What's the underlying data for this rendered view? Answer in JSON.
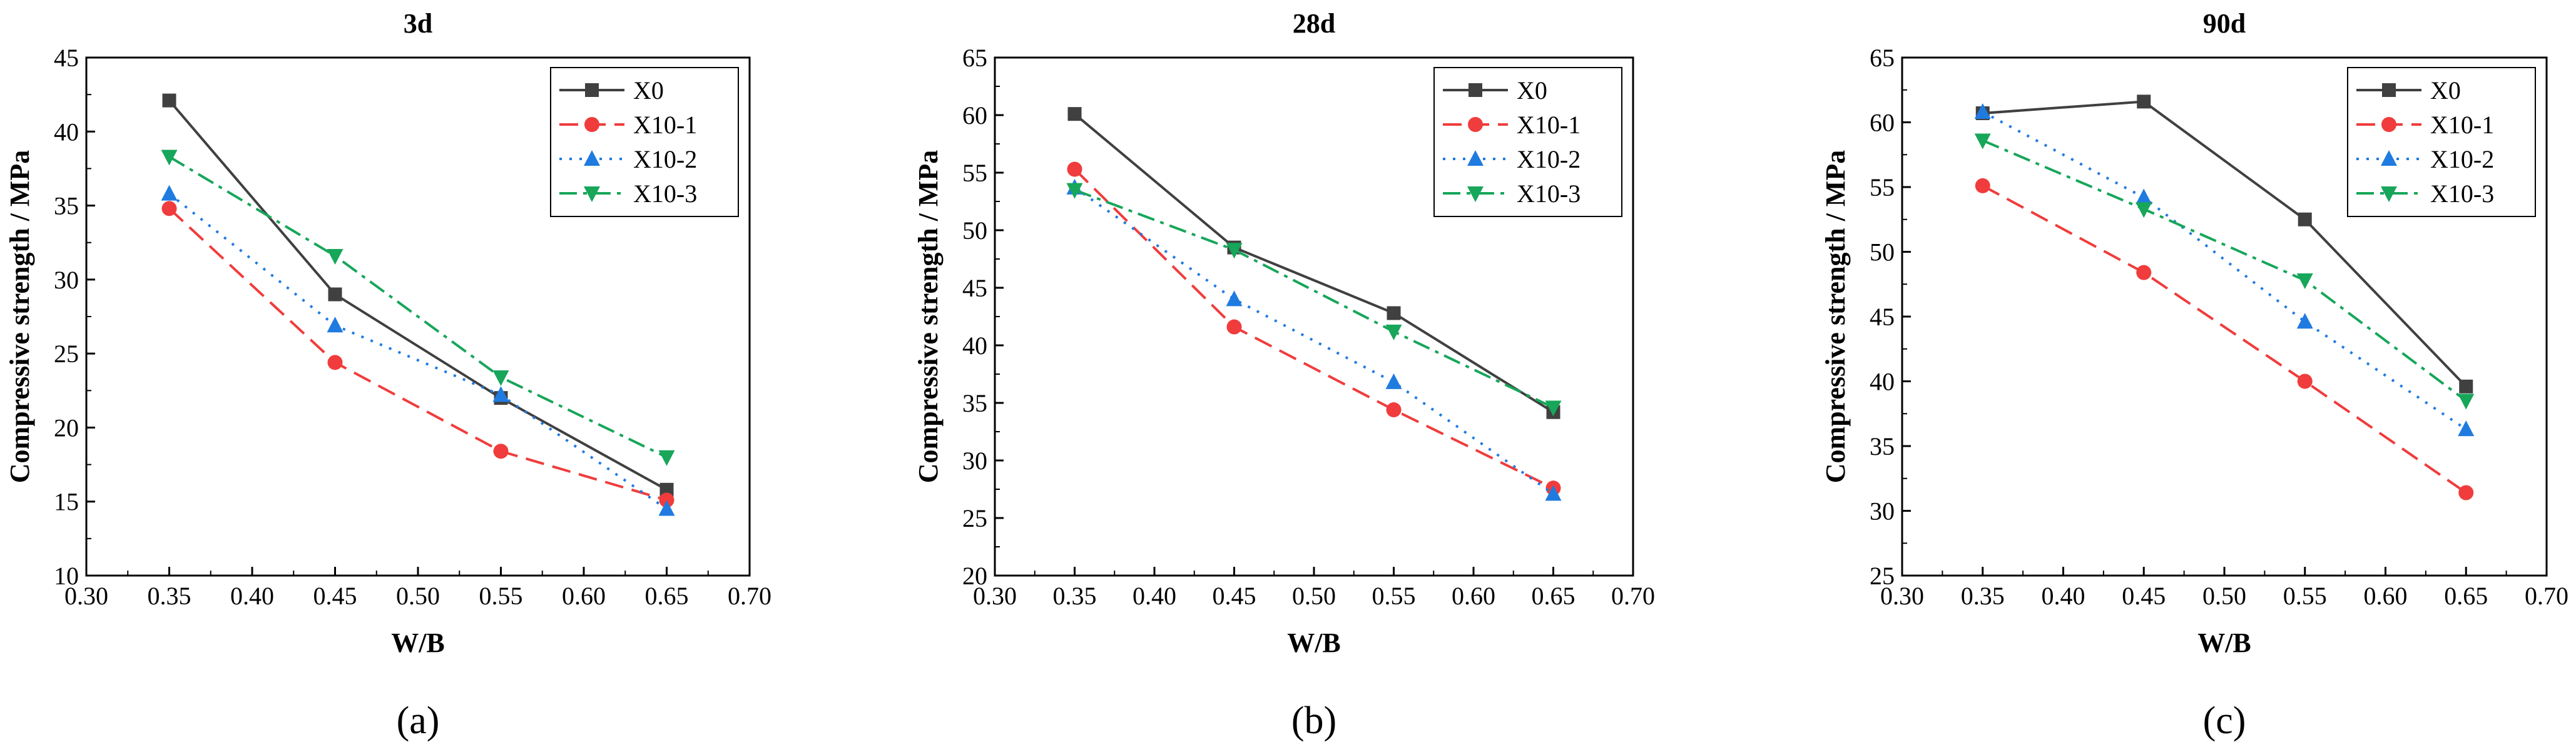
{
  "chart_data": [
    {
      "type": "line",
      "title": "3d",
      "caption": "(a)",
      "xlabel": "W/B",
      "ylabel": "Compressive strength / MPa",
      "xlim": [
        0.3,
        0.7
      ],
      "ylim": [
        10,
        45
      ],
      "xticks": [
        "0.30",
        "0.35",
        "0.40",
        "0.45",
        "0.50",
        "0.55",
        "0.60",
        "0.65",
        "0.70"
      ],
      "yticks": [
        "10",
        "15",
        "20",
        "25",
        "30",
        "35",
        "40",
        "45"
      ],
      "x": [
        0.35,
        0.45,
        0.55,
        0.65
      ],
      "legend_position": "top-right",
      "series": [
        {
          "name": "X0",
          "values": [
            42.1,
            29.0,
            22.0,
            15.8
          ]
        },
        {
          "name": "X10-1",
          "values": [
            34.8,
            24.4,
            18.4,
            15.1
          ]
        },
        {
          "name": "X10-2",
          "values": [
            35.8,
            26.9,
            22.2,
            14.5
          ]
        },
        {
          "name": "X10-3",
          "values": [
            38.3,
            31.6,
            23.4,
            18.0
          ]
        }
      ]
    },
    {
      "type": "line",
      "title": "28d",
      "caption": "(b)",
      "xlabel": "W/B",
      "ylabel": "Compressive strength / MPa",
      "xlim": [
        0.3,
        0.7
      ],
      "ylim": [
        20,
        65
      ],
      "xticks": [
        "0.30",
        "0.35",
        "0.40",
        "0.45",
        "0.50",
        "0.55",
        "0.60",
        "0.65",
        "0.70"
      ],
      "yticks": [
        "20",
        "25",
        "30",
        "35",
        "40",
        "45",
        "50",
        "55",
        "60",
        "65"
      ],
      "x": [
        0.35,
        0.45,
        0.55,
        0.65
      ],
      "legend_position": "top-right",
      "series": [
        {
          "name": "X0",
          "values": [
            60.1,
            48.5,
            42.8,
            34.2
          ]
        },
        {
          "name": "X10-1",
          "values": [
            55.3,
            41.6,
            34.4,
            27.6
          ]
        },
        {
          "name": "X10-2",
          "values": [
            53.7,
            44.0,
            36.8,
            27.1
          ]
        },
        {
          "name": "X10-3",
          "values": [
            53.5,
            48.3,
            41.2,
            34.6
          ]
        }
      ]
    },
    {
      "type": "line",
      "title": "90d",
      "caption": "(c)",
      "xlabel": "W/B",
      "ylabel": "Compressive strength / MPa",
      "xlim": [
        0.3,
        0.7
      ],
      "ylim": [
        25,
        65
      ],
      "xticks": [
        "0.30",
        "0.35",
        "0.40",
        "0.45",
        "0.50",
        "0.55",
        "0.60",
        "0.65",
        "0.70"
      ],
      "yticks": [
        "25",
        "30",
        "35",
        "40",
        "45",
        "50",
        "55",
        "60",
        "65"
      ],
      "x": [
        0.35,
        0.45,
        0.55,
        0.65
      ],
      "legend_position": "top-right",
      "series": [
        {
          "name": "X0",
          "values": [
            60.7,
            61.6,
            52.5,
            39.6
          ]
        },
        {
          "name": "X10-1",
          "values": [
            55.1,
            48.4,
            40.0,
            31.4
          ]
        },
        {
          "name": "X10-2",
          "values": [
            60.8,
            54.2,
            44.6,
            36.3
          ]
        },
        {
          "name": "X10-3",
          "values": [
            58.6,
            53.3,
            47.8,
            38.5
          ]
        }
      ]
    }
  ],
  "series_styles": [
    {
      "color": "#404040",
      "dash": "",
      "marker": "square"
    },
    {
      "color": "#f03c3c",
      "dash": "30,14",
      "marker": "circle"
    },
    {
      "color": "#1f7be0",
      "dash": "4,12",
      "marker": "triangle-up"
    },
    {
      "color": "#17a65a",
      "dash": "28,10,6,10",
      "marker": "triangle-down"
    }
  ]
}
